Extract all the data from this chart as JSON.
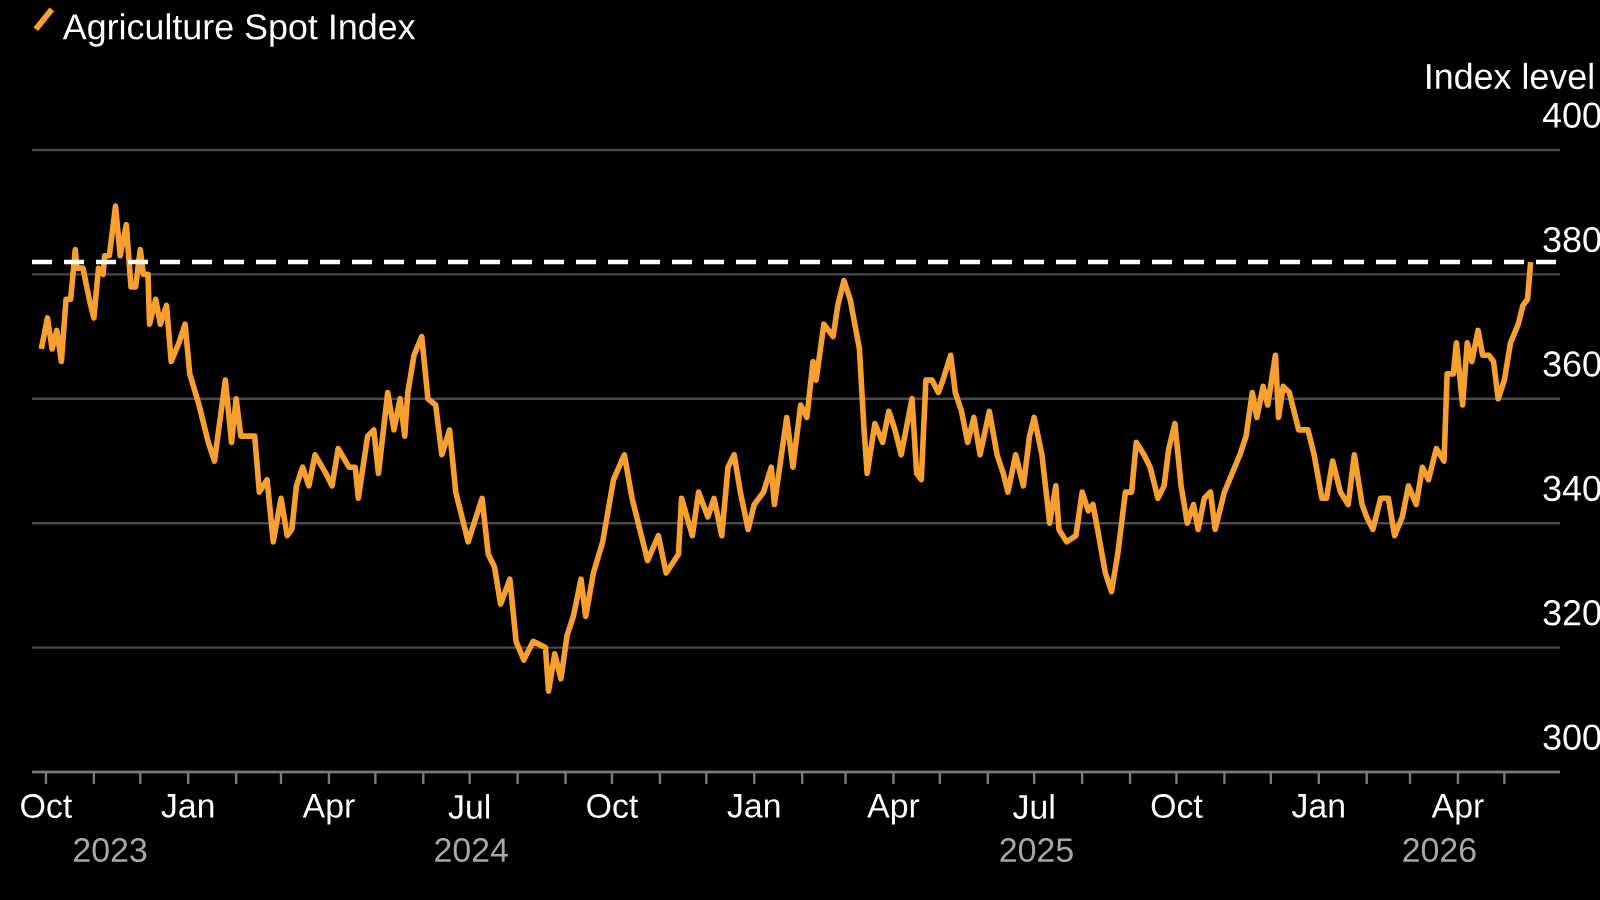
{
  "chart_data": {
    "type": "line",
    "ylabel": "Index level",
    "legend": "top left",
    "grid": "y",
    "marker": "none",
    "line_style": "solid",
    "xlim": [
      "2023-09-22",
      "2026-06-06"
    ],
    "ylim": [
      300,
      400
    ],
    "yticks": [
      300,
      320,
      340,
      360,
      380,
      400
    ],
    "xticks": [
      {
        "value": "2023-10-01",
        "label": "Oct"
      },
      {
        "value": "2023-11-01",
        "label": null
      },
      {
        "value": "2023-12-01",
        "label": null
      },
      {
        "value": "2024-01-01",
        "label": "Jan"
      },
      {
        "value": "2024-02-01",
        "label": null
      },
      {
        "value": "2024-03-01",
        "label": null
      },
      {
        "value": "2024-04-01",
        "label": "Apr"
      },
      {
        "value": "2024-05-01",
        "label": null
      },
      {
        "value": "2024-06-01",
        "label": null
      },
      {
        "value": "2024-07-01",
        "label": "Jul"
      },
      {
        "value": "2024-08-01",
        "label": null
      },
      {
        "value": "2024-09-01",
        "label": null
      },
      {
        "value": "2024-10-01",
        "label": "Oct"
      },
      {
        "value": "2024-11-01",
        "label": null
      },
      {
        "value": "2024-12-01",
        "label": null
      },
      {
        "value": "2025-01-01",
        "label": "Jan"
      },
      {
        "value": "2025-02-01",
        "label": null
      },
      {
        "value": "2025-03-01",
        "label": null
      },
      {
        "value": "2025-04-01",
        "label": "Apr"
      },
      {
        "value": "2025-05-01",
        "label": null
      },
      {
        "value": "2025-06-01",
        "label": null
      },
      {
        "value": "2025-07-01",
        "label": "Jul"
      },
      {
        "value": "2025-08-01",
        "label": null
      },
      {
        "value": "2025-09-01",
        "label": null
      },
      {
        "value": "2025-10-01",
        "label": "Oct"
      },
      {
        "value": "2025-11-01",
        "label": null
      },
      {
        "value": "2025-12-01",
        "label": null
      },
      {
        "value": "2026-01-01",
        "label": "Jan"
      },
      {
        "value": "2026-02-01",
        "label": null
      },
      {
        "value": "2026-03-01",
        "label": null
      },
      {
        "value": "2026-04-01",
        "label": "Apr"
      },
      {
        "value": "2026-05-01",
        "label": null
      }
    ],
    "annotations": [
      "2023",
      "2024",
      "2025",
      "2026"
    ],
    "ref_lines": [
      {
        "axis": "y",
        "value": 382,
        "color": "#ffffff",
        "line_style": "dashed"
      }
    ],
    "series": [
      {
        "name": "Agriculture Spot Index",
        "color": "#f7a030",
        "x": [
          "2023-09-28",
          "2023-10-02",
          "2023-10-05",
          "2023-10-08",
          "2023-10-11",
          "2023-10-14",
          "2023-10-17",
          "2023-10-20",
          "2023-10-21",
          "2023-10-25",
          "2023-10-29",
          "2023-11-01",
          "2023-11-04",
          "2023-11-07",
          "2023-11-08",
          "2023-11-11",
          "2023-11-15",
          "2023-11-18",
          "2023-11-22",
          "2023-11-25",
          "2023-11-28",
          "2023-12-01",
          "2023-12-03",
          "2023-12-06",
          "2023-12-07",
          "2023-12-11",
          "2023-12-14",
          "2023-12-18",
          "2023-12-21",
          "2023-12-26",
          "2023-12-30",
          "2024-01-02",
          "2024-01-08",
          "2024-01-10",
          "2024-01-14",
          "2024-01-18",
          "2024-01-25",
          "2024-01-29",
          "2024-02-01",
          "2024-02-04",
          "2024-02-13",
          "2024-02-16",
          "2024-02-21",
          "2024-02-25",
          "2024-03-01",
          "2024-03-05",
          "2024-03-08",
          "2024-03-11",
          "2024-03-15",
          "2024-03-19",
          "2024-03-23",
          "2024-03-30",
          "2024-04-03",
          "2024-04-07",
          "2024-04-14",
          "2024-04-18",
          "2024-04-20",
          "2024-04-26",
          "2024-04-30",
          "2024-05-03",
          "2024-05-09",
          "2024-05-13",
          "2024-05-17",
          "2024-05-20",
          "2024-05-22",
          "2024-05-26",
          "2024-05-31",
          "2024-06-04",
          "2024-06-09",
          "2024-06-13",
          "2024-06-18",
          "2024-06-22",
          "2024-06-26",
          "2024-06-30",
          "2024-07-09",
          "2024-07-13",
          "2024-07-17",
          "2024-07-21",
          "2024-07-27",
          "2024-07-31",
          "2024-08-05",
          "2024-08-11",
          "2024-08-19",
          "2024-08-21",
          "2024-08-25",
          "2024-08-29",
          "2024-09-02",
          "2024-09-06",
          "2024-09-11",
          "2024-09-14",
          "2024-09-19",
          "2024-09-25",
          "2024-10-02",
          "2024-10-09",
          "2024-10-14",
          "2024-10-19",
          "2024-10-24",
          "2024-10-31",
          "2024-11-05",
          "2024-11-13",
          "2024-11-15",
          "2024-11-22",
          "2024-11-26",
          "2024-12-02",
          "2024-12-06",
          "2024-12-11",
          "2024-12-15",
          "2024-12-19",
          "2024-12-23",
          "2024-12-28",
          "2025-01-01",
          "2025-01-07",
          "2025-01-12",
          "2025-01-14",
          "2025-01-22",
          "2025-01-26",
          "2025-01-31",
          "2025-02-04",
          "2025-02-08",
          "2025-02-10",
          "2025-02-15",
          "2025-02-21",
          "2025-02-24",
          "2025-02-28",
          "2025-03-04",
          "2025-03-10",
          "2025-03-13",
          "2025-03-15",
          "2025-03-20",
          "2025-03-25",
          "2025-03-29",
          "2025-04-02",
          "2025-04-06",
          "2025-04-13",
          "2025-04-16",
          "2025-04-19",
          "2025-04-22",
          "2025-04-26",
          "2025-04-30",
          "2025-05-03",
          "2025-05-08",
          "2025-05-11",
          "2025-05-15",
          "2025-05-19",
          "2025-05-23",
          "2025-05-27",
          "2025-06-02",
          "2025-06-07",
          "2025-06-11",
          "2025-06-14",
          "2025-06-19",
          "2025-06-24",
          "2025-06-28",
          "2025-07-01",
          "2025-07-06",
          "2025-07-11",
          "2025-07-15",
          "2025-07-17",
          "2025-07-22",
          "2025-07-28",
          "2025-08-01",
          "2025-08-05",
          "2025-08-08",
          "2025-08-11",
          "2025-08-16",
          "2025-08-20",
          "2025-08-24",
          "2025-08-29",
          "2025-09-02",
          "2025-09-05",
          "2025-09-10",
          "2025-09-14",
          "2025-09-19",
          "2025-09-23",
          "2025-09-26",
          "2025-09-30",
          "2025-10-04",
          "2025-10-08",
          "2025-10-12",
          "2025-10-15",
          "2025-10-19",
          "2025-10-23",
          "2025-10-26",
          "2025-11-01",
          "2025-11-06",
          "2025-11-11",
          "2025-11-15",
          "2025-11-19",
          "2025-11-22",
          "2025-11-26",
          "2025-11-29",
          "2025-12-04",
          "2025-12-06",
          "2025-12-09",
          "2025-12-13",
          "2025-12-19",
          "2025-12-25",
          "2025-12-29",
          "2026-01-03",
          "2026-01-06",
          "2026-01-10",
          "2026-01-15",
          "2026-01-20",
          "2026-01-24",
          "2026-01-29",
          "2026-02-01",
          "2026-02-05",
          "2026-02-10",
          "2026-02-15",
          "2026-02-19",
          "2026-02-24",
          "2026-02-28",
          "2026-03-05",
          "2026-03-09",
          "2026-03-13",
          "2026-03-18",
          "2026-03-23",
          "2026-03-25",
          "2026-03-29",
          "2026-03-31",
          "2026-04-04",
          "2026-04-07",
          "2026-04-10",
          "2026-04-14",
          "2026-04-17",
          "2026-04-21",
          "2026-04-24",
          "2026-04-27",
          "2026-05-01",
          "2026-05-05",
          "2026-05-10",
          "2026-05-13",
          "2026-05-16",
          "2026-05-18"
        ],
        "values": [
          368,
          373,
          368,
          371,
          366,
          376,
          376,
          384,
          381,
          381,
          376,
          373,
          381,
          380,
          383,
          383,
          391,
          383,
          388,
          378,
          378,
          384,
          380,
          380,
          372,
          376,
          372,
          375,
          366,
          369,
          372,
          364,
          359,
          357,
          353,
          350,
          363,
          353,
          360,
          354,
          354,
          345,
          347,
          337,
          344,
          338,
          339,
          346,
          349,
          346,
          351,
          348,
          346,
          352,
          349,
          349,
          344,
          354,
          355,
          348,
          361,
          355,
          360,
          354,
          361,
          367,
          370,
          360,
          359,
          351,
          355,
          345,
          341,
          337,
          344,
          335,
          333,
          327,
          331,
          321,
          318,
          321,
          320,
          313,
          319,
          315,
          322,
          325,
          331,
          325,
          332,
          337,
          347,
          351,
          344,
          339,
          334,
          338,
          332,
          335,
          344,
          338,
          345,
          341,
          344,
          338,
          349,
          351,
          345,
          339,
          343,
          345,
          349,
          343,
          357,
          349,
          359,
          357,
          366,
          363,
          372,
          370,
          375,
          379,
          376,
          368,
          355,
          348,
          356,
          353,
          358,
          355,
          351,
          360,
          348,
          347,
          363,
          363,
          361,
          363,
          367,
          361,
          358,
          353,
          357,
          351,
          358,
          351,
          348,
          345,
          351,
          346,
          354,
          357,
          351,
          340,
          346,
          339,
          337,
          338,
          345,
          342,
          343,
          339,
          332,
          329,
          335,
          345,
          345,
          353,
          351,
          349,
          344,
          346,
          352,
          356,
          346,
          340,
          343,
          339,
          344,
          345,
          339,
          345,
          348,
          351,
          354,
          361,
          357,
          362,
          359,
          367,
          357,
          362,
          361,
          355,
          355,
          351,
          344,
          344,
          350,
          345,
          343,
          351,
          343,
          341,
          339,
          344,
          344,
          338,
          341,
          346,
          343,
          349,
          347,
          352,
          350,
          364,
          364,
          369,
          359,
          369,
          366,
          371,
          367,
          367,
          366,
          360,
          363,
          369,
          372,
          375,
          376,
          382
        ]
      }
    ]
  }
}
